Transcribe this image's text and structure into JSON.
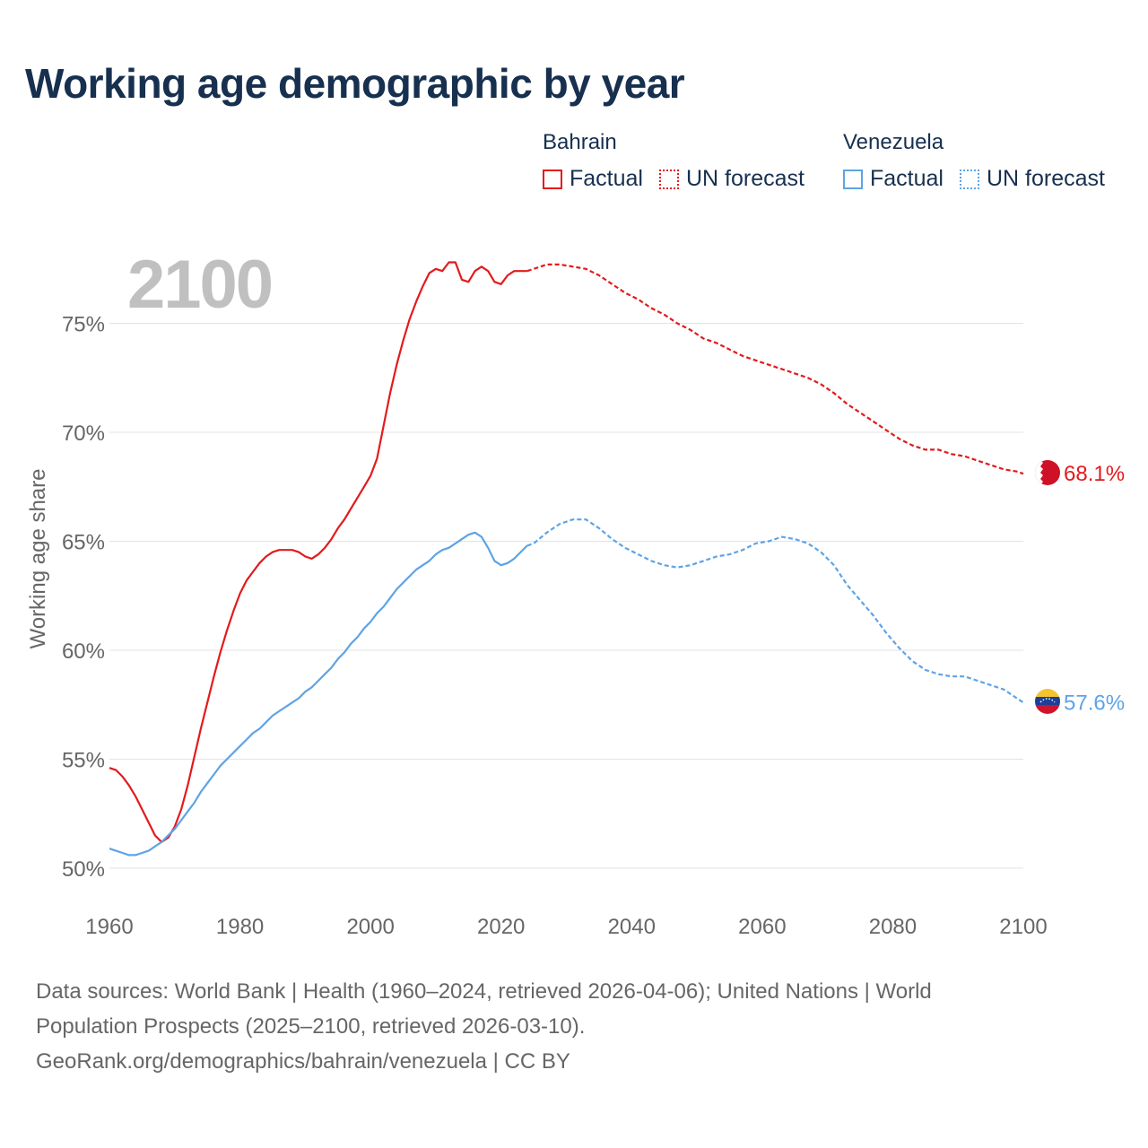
{
  "title": "Working age demographic by year",
  "colors": {
    "bahrain": "#e31a1c",
    "venezuela": "#5ea3e6",
    "title": "#17304f",
    "muted": "#666666",
    "year_watermark": "#c0c0c0"
  },
  "legend": {
    "bahrain": {
      "country": "Bahrain",
      "factual": "Factual",
      "forecast": "UN forecast"
    },
    "venezuela": {
      "country": "Venezuela",
      "factual": "Factual",
      "forecast": "UN forecast"
    }
  },
  "chart_data": {
    "type": "line",
    "ylabel": "Working age share",
    "xlabel": "",
    "xlim": [
      1960,
      2100
    ],
    "ylim": [
      49,
      79
    ],
    "x_ticks": [
      1960,
      1980,
      2000,
      2020,
      2040,
      2060,
      2080,
      2100
    ],
    "y_ticks": [
      50,
      55,
      60,
      65,
      70,
      75
    ],
    "y_tick_labels": [
      "50%",
      "55%",
      "60%",
      "65%",
      "70%",
      "75%"
    ],
    "year_watermark": "2100",
    "factual_until": 2024,
    "series": [
      {
        "name": "Bahrain",
        "end_label": "68.1%",
        "points": [
          [
            1960,
            54.6
          ],
          [
            1961,
            54.5
          ],
          [
            1962,
            54.2
          ],
          [
            1963,
            53.8
          ],
          [
            1964,
            53.3
          ],
          [
            1965,
            52.7
          ],
          [
            1966,
            52.1
          ],
          [
            1967,
            51.5
          ],
          [
            1968,
            51.2
          ],
          [
            1969,
            51.4
          ],
          [
            1970,
            51.9
          ],
          [
            1971,
            52.7
          ],
          [
            1972,
            53.8
          ],
          [
            1973,
            55.1
          ],
          [
            1974,
            56.4
          ],
          [
            1975,
            57.6
          ],
          [
            1976,
            58.8
          ],
          [
            1977,
            59.9
          ],
          [
            1978,
            60.9
          ],
          [
            1979,
            61.8
          ],
          [
            1980,
            62.6
          ],
          [
            1981,
            63.2
          ],
          [
            1982,
            63.6
          ],
          [
            1983,
            64.0
          ],
          [
            1984,
            64.3
          ],
          [
            1985,
            64.5
          ],
          [
            1986,
            64.6
          ],
          [
            1987,
            64.6
          ],
          [
            1988,
            64.6
          ],
          [
            1989,
            64.5
          ],
          [
            1990,
            64.3
          ],
          [
            1991,
            64.2
          ],
          [
            1992,
            64.4
          ],
          [
            1993,
            64.7
          ],
          [
            1994,
            65.1
          ],
          [
            1995,
            65.6
          ],
          [
            1996,
            66.0
          ],
          [
            1997,
            66.5
          ],
          [
            1998,
            67.0
          ],
          [
            1999,
            67.5
          ],
          [
            2000,
            68.0
          ],
          [
            2001,
            68.8
          ],
          [
            2002,
            70.3
          ],
          [
            2003,
            71.8
          ],
          [
            2004,
            73.1
          ],
          [
            2005,
            74.2
          ],
          [
            2006,
            75.2
          ],
          [
            2007,
            76.0
          ],
          [
            2008,
            76.7
          ],
          [
            2009,
            77.3
          ],
          [
            2010,
            77.5
          ],
          [
            2011,
            77.4
          ],
          [
            2012,
            77.8
          ],
          [
            2013,
            77.8
          ],
          [
            2014,
            77.0
          ],
          [
            2015,
            76.9
          ],
          [
            2016,
            77.4
          ],
          [
            2017,
            77.6
          ],
          [
            2018,
            77.4
          ],
          [
            2019,
            76.9
          ],
          [
            2020,
            76.8
          ],
          [
            2021,
            77.2
          ],
          [
            2022,
            77.4
          ],
          [
            2023,
            77.4
          ],
          [
            2024,
            77.4
          ],
          [
            2025,
            77.5
          ],
          [
            2027,
            77.7
          ],
          [
            2029,
            77.7
          ],
          [
            2031,
            77.6
          ],
          [
            2033,
            77.5
          ],
          [
            2035,
            77.2
          ],
          [
            2037,
            76.8
          ],
          [
            2039,
            76.4
          ],
          [
            2041,
            76.1
          ],
          [
            2043,
            75.7
          ],
          [
            2045,
            75.4
          ],
          [
            2047,
            75.0
          ],
          [
            2049,
            74.7
          ],
          [
            2051,
            74.3
          ],
          [
            2053,
            74.1
          ],
          [
            2055,
            73.8
          ],
          [
            2057,
            73.5
          ],
          [
            2059,
            73.3
          ],
          [
            2061,
            73.1
          ],
          [
            2063,
            72.9
          ],
          [
            2065,
            72.7
          ],
          [
            2067,
            72.5
          ],
          [
            2069,
            72.2
          ],
          [
            2071,
            71.8
          ],
          [
            2073,
            71.3
          ],
          [
            2075,
            70.9
          ],
          [
            2077,
            70.5
          ],
          [
            2079,
            70.1
          ],
          [
            2081,
            69.7
          ],
          [
            2083,
            69.4
          ],
          [
            2085,
            69.2
          ],
          [
            2087,
            69.2
          ],
          [
            2089,
            69.0
          ],
          [
            2091,
            68.9
          ],
          [
            2093,
            68.7
          ],
          [
            2095,
            68.5
          ],
          [
            2097,
            68.3
          ],
          [
            2099,
            68.2
          ],
          [
            2100,
            68.1
          ]
        ]
      },
      {
        "name": "Venezuela",
        "end_label": "57.6%",
        "points": [
          [
            1960,
            50.9
          ],
          [
            1961,
            50.8
          ],
          [
            1962,
            50.7
          ],
          [
            1963,
            50.6
          ],
          [
            1964,
            50.6
          ],
          [
            1965,
            50.7
          ],
          [
            1966,
            50.8
          ],
          [
            1967,
            51.0
          ],
          [
            1968,
            51.2
          ],
          [
            1969,
            51.5
          ],
          [
            1970,
            51.8
          ],
          [
            1971,
            52.2
          ],
          [
            1972,
            52.6
          ],
          [
            1973,
            53.0
          ],
          [
            1974,
            53.5
          ],
          [
            1975,
            53.9
          ],
          [
            1976,
            54.3
          ],
          [
            1977,
            54.7
          ],
          [
            1978,
            55.0
          ],
          [
            1979,
            55.3
          ],
          [
            1980,
            55.6
          ],
          [
            1981,
            55.9
          ],
          [
            1982,
            56.2
          ],
          [
            1983,
            56.4
          ],
          [
            1984,
            56.7
          ],
          [
            1985,
            57.0
          ],
          [
            1986,
            57.2
          ],
          [
            1987,
            57.4
          ],
          [
            1988,
            57.6
          ],
          [
            1989,
            57.8
          ],
          [
            1990,
            58.1
          ],
          [
            1991,
            58.3
          ],
          [
            1992,
            58.6
          ],
          [
            1993,
            58.9
          ],
          [
            1994,
            59.2
          ],
          [
            1995,
            59.6
          ],
          [
            1996,
            59.9
          ],
          [
            1997,
            60.3
          ],
          [
            1998,
            60.6
          ],
          [
            1999,
            61.0
          ],
          [
            2000,
            61.3
          ],
          [
            2001,
            61.7
          ],
          [
            2002,
            62.0
          ],
          [
            2003,
            62.4
          ],
          [
            2004,
            62.8
          ],
          [
            2005,
            63.1
          ],
          [
            2006,
            63.4
          ],
          [
            2007,
            63.7
          ],
          [
            2008,
            63.9
          ],
          [
            2009,
            64.1
          ],
          [
            2010,
            64.4
          ],
          [
            2011,
            64.6
          ],
          [
            2012,
            64.7
          ],
          [
            2013,
            64.9
          ],
          [
            2014,
            65.1
          ],
          [
            2015,
            65.3
          ],
          [
            2016,
            65.4
          ],
          [
            2017,
            65.2
          ],
          [
            2018,
            64.7
          ],
          [
            2019,
            64.1
          ],
          [
            2020,
            63.9
          ],
          [
            2021,
            64.0
          ],
          [
            2022,
            64.2
          ],
          [
            2023,
            64.5
          ],
          [
            2024,
            64.8
          ],
          [
            2025,
            64.9
          ],
          [
            2027,
            65.4
          ],
          [
            2029,
            65.8
          ],
          [
            2031,
            66.0
          ],
          [
            2033,
            66.0
          ],
          [
            2035,
            65.6
          ],
          [
            2037,
            65.1
          ],
          [
            2039,
            64.7
          ],
          [
            2041,
            64.4
          ],
          [
            2043,
            64.1
          ],
          [
            2045,
            63.9
          ],
          [
            2047,
            63.8
          ],
          [
            2049,
            63.9
          ],
          [
            2051,
            64.1
          ],
          [
            2053,
            64.3
          ],
          [
            2055,
            64.4
          ],
          [
            2057,
            64.6
          ],
          [
            2059,
            64.9
          ],
          [
            2061,
            65.0
          ],
          [
            2063,
            65.2
          ],
          [
            2065,
            65.1
          ],
          [
            2067,
            64.9
          ],
          [
            2069,
            64.5
          ],
          [
            2071,
            63.9
          ],
          [
            2073,
            63.0
          ],
          [
            2075,
            62.3
          ],
          [
            2077,
            61.6
          ],
          [
            2079,
            60.8
          ],
          [
            2081,
            60.1
          ],
          [
            2083,
            59.5
          ],
          [
            2085,
            59.1
          ],
          [
            2087,
            58.9
          ],
          [
            2089,
            58.8
          ],
          [
            2091,
            58.8
          ],
          [
            2093,
            58.6
          ],
          [
            2095,
            58.4
          ],
          [
            2097,
            58.2
          ],
          [
            2099,
            57.8
          ],
          [
            2100,
            57.6
          ]
        ]
      }
    ]
  },
  "footer": {
    "line1": "Data sources: World Bank | Health (1960–2024, retrieved 2026-04-06); United Nations | World",
    "line2": "Population Prospects (2025–2100, retrieved 2026-03-10).",
    "line3": "GeoRank.org/demographics/bahrain/venezuela | CC BY"
  }
}
